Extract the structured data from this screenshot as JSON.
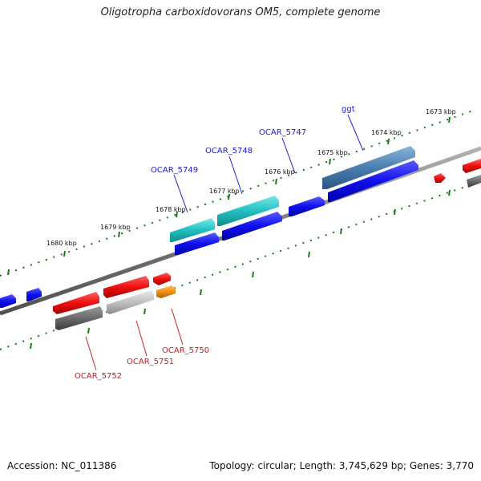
{
  "title": "Oligotropha carboxidovorans OM5, complete genome",
  "footer": {
    "accession": "Accession: NC_011386",
    "summary": "Topology: circular; Length: 3,745,629 bp; Genes: 3,770"
  },
  "colors": {
    "forward_gene": "#1010ee",
    "reverse_gene": "#ee1010",
    "rna_teal": "#22c0c0",
    "selected_blue": "#4a7fb0",
    "gray_gene": "#808080",
    "orange_gene": "#f09010",
    "forward_label": "#1a1acc",
    "reverse_label": "#cc1a1a",
    "tick_dots": "#1a7a1a",
    "backbone": "#8a8a8a"
  },
  "scale_ticks": [
    "1673 kbp",
    "1674 kbp",
    "1675 kbp",
    "1676 kbp",
    "1677 kbp",
    "1678 kbp",
    "1679 kbp",
    "1680 kbp"
  ],
  "gene_labels": {
    "top": [
      "ggt",
      "OCAR_5747",
      "OCAR_5748",
      "OCAR_5749"
    ],
    "bottom": [
      "OCAR_5750",
      "OCAR_5751",
      "OCAR_5752"
    ]
  }
}
